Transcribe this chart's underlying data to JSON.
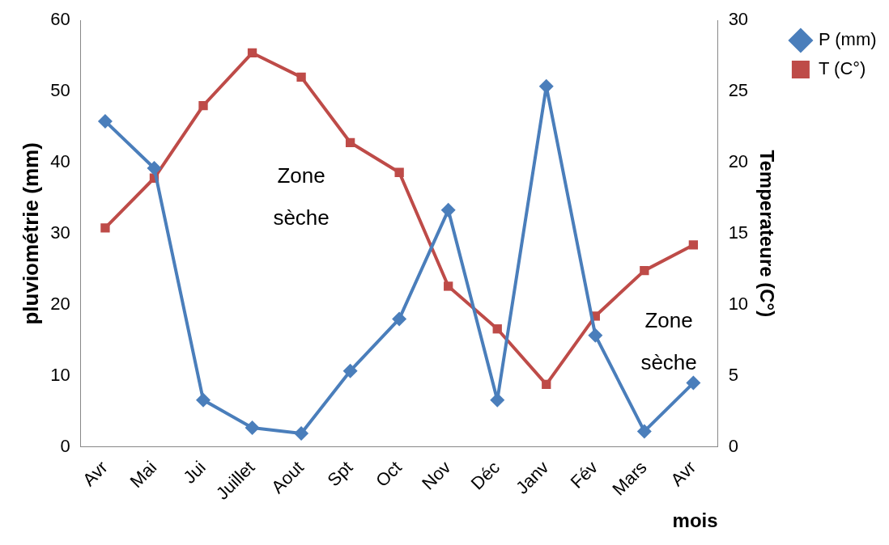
{
  "chart_data": {
    "type": "line",
    "xlabel": "mois",
    "ylabel": "pluviométrie (mm)",
    "y2label": "Temperateure (C°)",
    "categories": [
      "Avr",
      "Mai",
      "Jui",
      "Juillet",
      "Aout",
      "Spt",
      "Oct",
      "Nov",
      "Déc",
      "Janv",
      "Fév",
      "Mars",
      "Avr"
    ],
    "series": [
      {
        "name": "P (mm)",
        "color": "#4a7ebb",
        "marker": "diamond",
        "values": [
          45.8,
          39.2,
          6.6,
          2.7,
          1.9,
          10.7,
          18,
          33.3,
          6.6,
          50.7,
          15.7,
          2.2,
          9
        ]
      },
      {
        "name": "T (C°)",
        "color": "#be4b48",
        "marker": "square",
        "axis": "y2",
        "values": [
          15.4,
          18.9,
          24,
          27.7,
          26,
          21.4,
          19.3,
          11.3,
          8.3,
          4.4,
          9.2,
          12.4,
          14.2
        ]
      }
    ],
    "ylim": [
      0,
      60
    ],
    "yticks": [
      0,
      10,
      20,
      30,
      40,
      50,
      60
    ],
    "y2lim": [
      0,
      30
    ],
    "y2ticks": [
      0,
      5,
      10,
      15,
      20,
      25,
      30
    ],
    "grid": false,
    "legend": "top right",
    "line_style": "solid",
    "annotations": [
      "Zone\nsèche",
      "Zone\nsèche"
    ]
  }
}
